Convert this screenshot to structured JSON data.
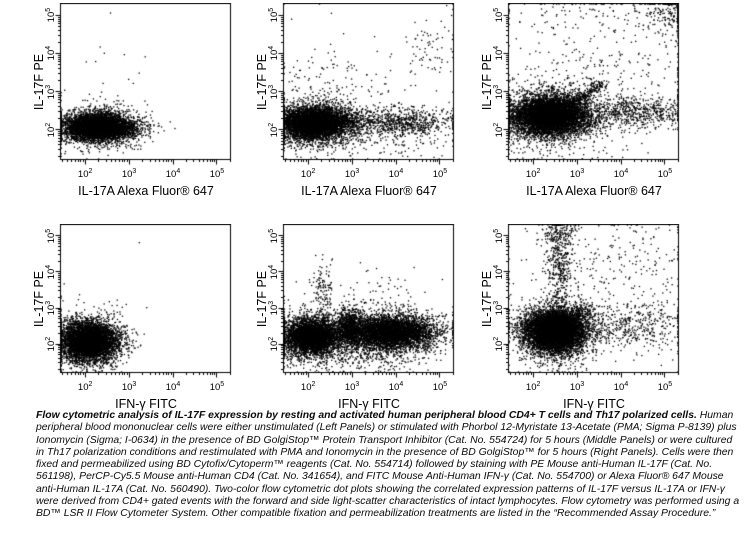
{
  "figure_title": "Flow cytometric analysis of IL-17F expression",
  "caption": {
    "bold_lead": "Flow cytometric analysis of IL-17F expression by resting and activated human peripheral blood CD4+ T cells and Th17 polarized cells. ",
    "body": "Human peripheral blood mononuclear cells were either unstimulated (Left Panels) or stimulated with Phorbol 12-Myristate 13-Acetate (PMA; Sigma P-8139) plus Ionomycin (Sigma; I-0634) in the presence of BD GolgiStop™ Protein Transport Inhibitor (Cat. No. 554724) for 5 hours (Middle Panels) or were cultured in Th17 polarization conditions and restimulated with PMA and Ionomycin in the presence of BD GolgiStop™ for 5 hours (Right Panels). Cells were then fixed and permeabilized using BD Cytofix/Cytoperm™ reagents (Cat. No. 554714) followed by staining with PE Mouse anti-Human IL-17F (Cat. No. 561198), PerCP-Cy5.5 Mouse anti-Human CD4 (Cat. No. 341654), and FITC Mouse Anti-Human IFN-γ (Cat. No. 554700) or Alexa Fluor® 647 Mouse anti-Human IL-17A (Cat. No. 560490). Two-color flow cytometric dot plots showing the correlated expression patterns of IL-17F versus IL-17A or IFN-γ were derived from CD4+ gated events with the forward and side light-scatter characteristics of intact lymphocytes. Flow cytometry was performed using a BD™ LSR II Flow Cytometer System. Other compatible fixation and permeabilization treatments are listed in the “Recommended Assay Procedure.”"
  },
  "chart_data": {
    "type": "scatter",
    "subtype": "flow-cytometry-dot-plot",
    "scale": "log",
    "dot_color": "#000000",
    "tick_base": "10",
    "ticks": [
      2,
      3,
      4,
      5
    ],
    "x_log_range": [
      1.45,
      5.32
    ],
    "y_log_range": [
      1.2,
      5.3
    ],
    "panels": [
      {
        "id": "top-left",
        "row": 0,
        "col": 0,
        "xlabel": "IL-17A Alexa Fluor® 647",
        "ylabel": "IL-17F PE",
        "populations": [
          {
            "cx": 2.32,
            "cy": 2.05,
            "sx": 0.4,
            "sy": 0.17,
            "n": 5000
          },
          {
            "cx": 2.32,
            "cy": 2.05,
            "sx": 0.52,
            "sy": 0.3,
            "n": 900
          },
          {
            "cx": 2.6,
            "cy": 3.1,
            "sx": 0.55,
            "sy": 0.75,
            "n": 22
          }
        ]
      },
      {
        "id": "top-middle",
        "row": 0,
        "col": 1,
        "xlabel": "IL-17A Alexa Fluor® 647",
        "ylabel": "IL-17F PE",
        "populations": [
          {
            "cx": 2.18,
            "cy": 2.15,
            "sx": 0.4,
            "sy": 0.2,
            "n": 5200
          },
          {
            "cx": 2.2,
            "cy": 2.12,
            "sx": 0.55,
            "sy": 0.33,
            "n": 1100
          },
          {
            "cx": 4.25,
            "cy": 2.2,
            "sx": 0.55,
            "sy": 0.18,
            "n": 650
          },
          {
            "cx": 3.35,
            "cy": 2.2,
            "sx": 0.3,
            "sy": 0.2,
            "n": 130
          },
          {
            "cx": 4.85,
            "cy": 4.15,
            "sx": 0.3,
            "sy": 0.45,
            "n": 65
          },
          {
            "cx": 2.5,
            "cy": 3.0,
            "sx": 0.65,
            "sy": 0.5,
            "n": 130
          },
          {
            "cx": 3.3,
            "cy": 3.0,
            "sx": 1.2,
            "sy": 0.9,
            "n": 70
          },
          {
            "cx": 4.0,
            "cy": 1.7,
            "sx": 0.7,
            "sy": 0.25,
            "n": 120
          }
        ]
      },
      {
        "id": "top-right",
        "row": 0,
        "col": 2,
        "xlabel": "IL-17A Alexa Fluor® 647",
        "ylabel": "IL-17F PE",
        "populations": [
          {
            "cx": 2.4,
            "cy": 2.35,
            "sx": 0.42,
            "sy": 0.24,
            "n": 6000
          },
          {
            "cx": 2.45,
            "cy": 2.35,
            "sx": 0.6,
            "sy": 0.42,
            "n": 1600
          },
          {
            "line": [
              2.75,
              2.55,
              3.6,
              3.2
            ],
            "jx": 0.07,
            "jy": 0.07,
            "n": 260
          },
          {
            "cx": 4.35,
            "cy": 2.45,
            "sx": 0.6,
            "sy": 0.22,
            "n": 600
          },
          {
            "cx": 5.15,
            "cy": 5.05,
            "sx": 0.35,
            "sy": 0.32,
            "n": 260
          },
          {
            "cx": 3.5,
            "cy": 3.6,
            "sx": 1.15,
            "sy": 1.0,
            "n": 330
          },
          {
            "cx": 3.0,
            "cy": 5.1,
            "sx": 1.0,
            "sy": 0.25,
            "n": 60
          }
        ]
      },
      {
        "id": "bottom-left",
        "row": 1,
        "col": 0,
        "xlabel": "IFN-γ FITC",
        "ylabel": "IL-17F PE",
        "populations": [
          {
            "cx": 2.1,
            "cy": 2.05,
            "sx": 0.33,
            "sy": 0.27,
            "n": 5200
          },
          {
            "cx": 2.12,
            "cy": 2.05,
            "sx": 0.45,
            "sy": 0.4,
            "n": 700
          },
          {
            "cx": 2.4,
            "cy": 3.0,
            "sx": 0.45,
            "sy": 0.6,
            "n": 16
          }
        ]
      },
      {
        "id": "bottom-middle",
        "row": 1,
        "col": 1,
        "xlabel": "IFN-γ FITC",
        "ylabel": "IL-17F PE",
        "populations": [
          {
            "cx": 2.08,
            "cy": 2.2,
            "sx": 0.3,
            "sy": 0.24,
            "n": 3800
          },
          {
            "cx": 2.1,
            "cy": 2.15,
            "sx": 0.45,
            "sy": 0.38,
            "n": 900
          },
          {
            "cx": 2.95,
            "cy": 2.45,
            "sx": 0.14,
            "sy": 0.25,
            "n": 900
          },
          {
            "cx": 3.9,
            "cy": 2.3,
            "sx": 0.5,
            "sy": 0.23,
            "n": 4500
          },
          {
            "cx": 3.8,
            "cy": 2.3,
            "sx": 0.7,
            "sy": 0.35,
            "n": 800
          },
          {
            "cx": 2.35,
            "cy": 3.45,
            "sx": 0.12,
            "sy": 0.42,
            "n": 130
          },
          {
            "cx": 3.6,
            "cy": 3.3,
            "sx": 0.5,
            "sy": 0.4,
            "n": 70
          },
          {
            "cx": 3.2,
            "cy": 1.75,
            "sx": 0.8,
            "sy": 0.28,
            "n": 350
          }
        ]
      },
      {
        "id": "bottom-right",
        "row": 1,
        "col": 2,
        "xlabel": "IFN-γ FITC",
        "ylabel": "IL-17F PE",
        "populations": [
          {
            "cx": 2.5,
            "cy": 2.35,
            "sx": 0.33,
            "sy": 0.28,
            "n": 6500
          },
          {
            "cx": 2.52,
            "cy": 2.3,
            "sx": 0.45,
            "sy": 0.45,
            "n": 1300
          },
          {
            "cx": 2.62,
            "cy": 4.2,
            "sx": 0.16,
            "sy": 0.6,
            "n": 380
          },
          {
            "cx": 2.6,
            "cy": 5.05,
            "sx": 0.22,
            "sy": 0.2,
            "n": 140
          },
          {
            "line": [
              2.8,
              2.6,
              3.2,
              3.0
            ],
            "jx": 0.08,
            "jy": 0.08,
            "n": 160
          },
          {
            "cx": 4.0,
            "cy": 2.5,
            "sx": 0.8,
            "sy": 0.33,
            "n": 550
          },
          {
            "cx": 4.3,
            "cy": 4.5,
            "sx": 0.7,
            "sy": 0.65,
            "n": 130
          },
          {
            "cx": 3.4,
            "cy": 3.1,
            "sx": 1.2,
            "sy": 0.95,
            "n": 160
          }
        ]
      }
    ]
  }
}
